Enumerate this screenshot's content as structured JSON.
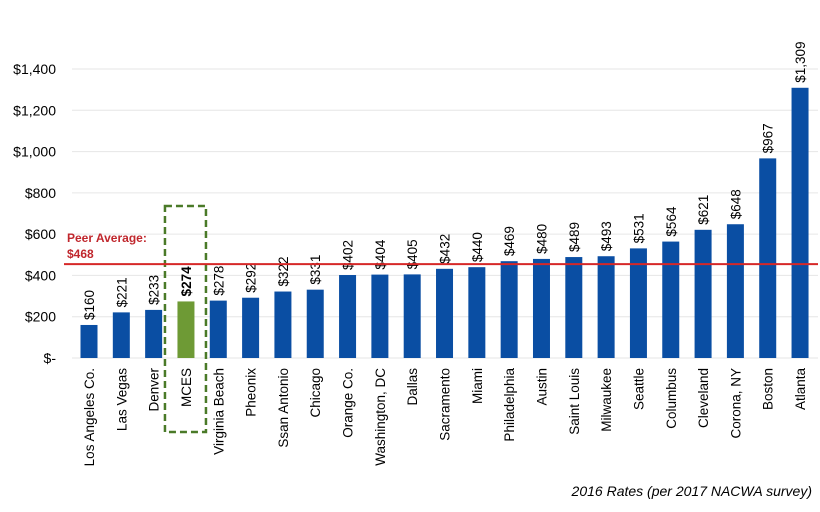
{
  "chart_data": {
    "type": "bar",
    "categories": [
      "Los Angeles Co.",
      "Las Vegas",
      "Denver",
      "MCES",
      "Virginia Beach",
      "Pheonix",
      "Ssan Antonio",
      "Chicago",
      "Orange Co.",
      "Washington, DC",
      "Dallas",
      "Sacramento",
      "Miami",
      "Philadelphia",
      "Austin",
      "Saint Louis",
      "Milwaukee",
      "Seattle",
      "Columbus",
      "Cleveland",
      "Corona, NY",
      "Boston",
      "Atlanta"
    ],
    "values": [
      160,
      221,
      233,
      274,
      278,
      292,
      322,
      331,
      402,
      404,
      405,
      432,
      440,
      469,
      480,
      489,
      493,
      531,
      564,
      621,
      648,
      967,
      1309
    ],
    "value_labels": [
      "$160",
      "$221",
      "$233",
      "$274",
      "$278",
      "$292",
      "$322",
      "$331",
      "$402",
      "$404",
      "$405",
      "$432",
      "$440",
      "$469",
      "$480",
      "$489",
      "$493",
      "$531",
      "$564",
      "$621",
      "$648",
      "$967",
      "$1,309"
    ],
    "highlight_category": "MCES",
    "ylim": [
      0,
      1400
    ],
    "yticks": [
      0,
      200,
      400,
      600,
      800,
      1000,
      1200,
      1400
    ],
    "ytick_labels": [
      "$-",
      "$200",
      "$400",
      "$600",
      "$800",
      "$1,000",
      "$1,200",
      "$1,400"
    ],
    "grid": true,
    "reference_line": {
      "value": 468,
      "label_line1": "Peer Average:",
      "label_line2": "$468"
    },
    "caption": "2016 Rates (per 2017 NACWA survey)"
  },
  "colors": {
    "bar": "#0a4ea3",
    "highlight_bar": "#6e9a35",
    "highlight_box": "#4a7a28",
    "reference_line": "#d62828",
    "reference_text": "#c0272d",
    "grid": "#e6e6e6"
  }
}
